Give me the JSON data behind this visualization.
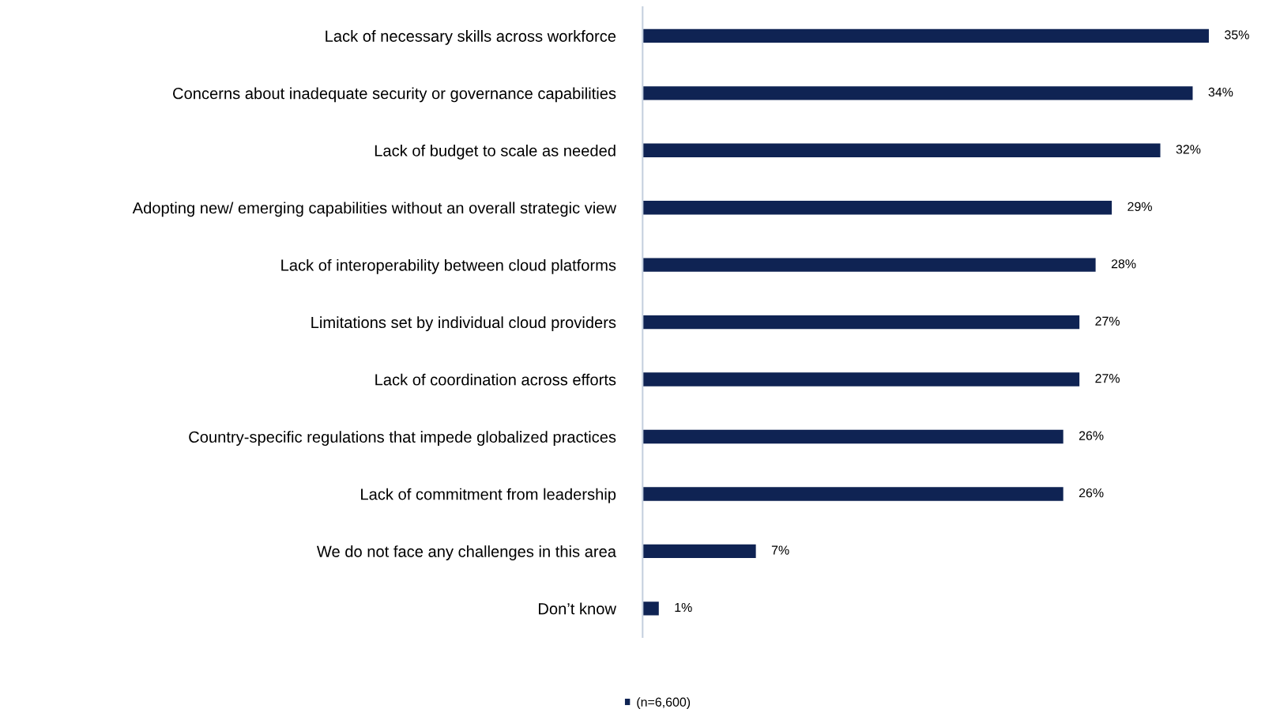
{
  "chart_data": {
    "type": "bar",
    "orientation": "horizontal",
    "categories": [
      "Lack of necessary skills across workforce",
      "Concerns about inadequate security or governance capabilities",
      "Lack of budget to scale as needed",
      "Adopting new/ emerging capabilities without an overall strategic view",
      "Lack of interoperability between cloud platforms",
      "Limitations set by individual cloud providers",
      "Lack of coordination across efforts",
      "Country-specific regulations that impede globalized practices",
      "Lack of commitment from leadership",
      "We do not face any challenges in this area",
      "Don’t know"
    ],
    "series": [
      {
        "name": "(n=6,600)",
        "color": "#0f2353",
        "values": [
          35,
          34,
          32,
          29,
          28,
          27,
          27,
          26,
          26,
          7,
          1
        ],
        "value_labels": [
          "35%",
          "34%",
          "32%",
          "29%",
          "28%",
          "27%",
          "27%",
          "26%",
          "26%",
          "7%",
          "1%"
        ]
      }
    ],
    "legend": "bottom",
    "grid": false,
    "tick_labels": "y"
  }
}
